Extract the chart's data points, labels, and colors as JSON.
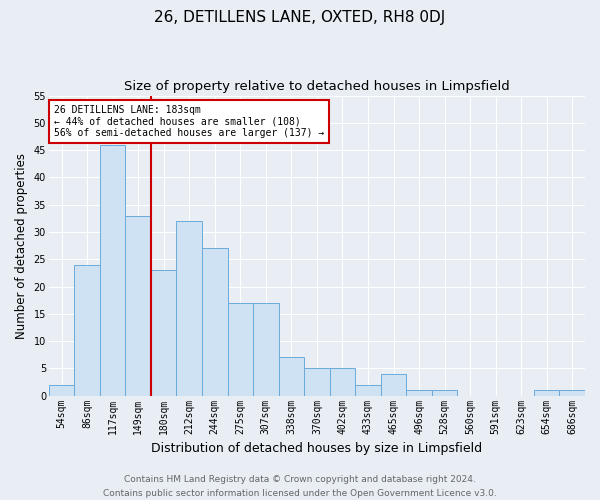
{
  "title": "26, DETILLENS LANE, OXTED, RH8 0DJ",
  "subtitle": "Size of property relative to detached houses in Limpsfield",
  "xlabel": "Distribution of detached houses by size in Limpsfield",
  "ylabel": "Number of detached properties",
  "categories": [
    "54sqm",
    "86sqm",
    "117sqm",
    "149sqm",
    "180sqm",
    "212sqm",
    "244sqm",
    "275sqm",
    "307sqm",
    "338sqm",
    "370sqm",
    "402sqm",
    "433sqm",
    "465sqm",
    "496sqm",
    "528sqm",
    "560sqm",
    "591sqm",
    "623sqm",
    "654sqm",
    "686sqm"
  ],
  "values": [
    2,
    24,
    46,
    33,
    23,
    32,
    27,
    17,
    17,
    7,
    5,
    5,
    2,
    4,
    1,
    1,
    0,
    0,
    0,
    1,
    1
  ],
  "bar_color": "#cfe2f3",
  "bar_edge_color": "#6aabdb",
  "vline_color": "#cc0000",
  "ylim": [
    0,
    55
  ],
  "yticks": [
    0,
    5,
    10,
    15,
    20,
    25,
    30,
    35,
    40,
    45,
    50,
    55
  ],
  "annotation_text": "26 DETILLENS LANE: 183sqm\n← 44% of detached houses are smaller (108)\n56% of semi-detached houses are larger (137) →",
  "annotation_box_color": "#ffffff",
  "annotation_box_edge": "#cc0000",
  "footer": "Contains HM Land Registry data © Crown copyright and database right 2024.\nContains public sector information licensed under the Open Government Licence v3.0.",
  "background_color": "#e8eef4",
  "plot_bg_color": "#e8eef4",
  "grid_color": "#ffffff",
  "title_fontsize": 11,
  "subtitle_fontsize": 9.5,
  "xlabel_fontsize": 9,
  "ylabel_fontsize": 8.5,
  "tick_fontsize": 7,
  "annotation_fontsize": 7,
  "footer_fontsize": 6.5
}
